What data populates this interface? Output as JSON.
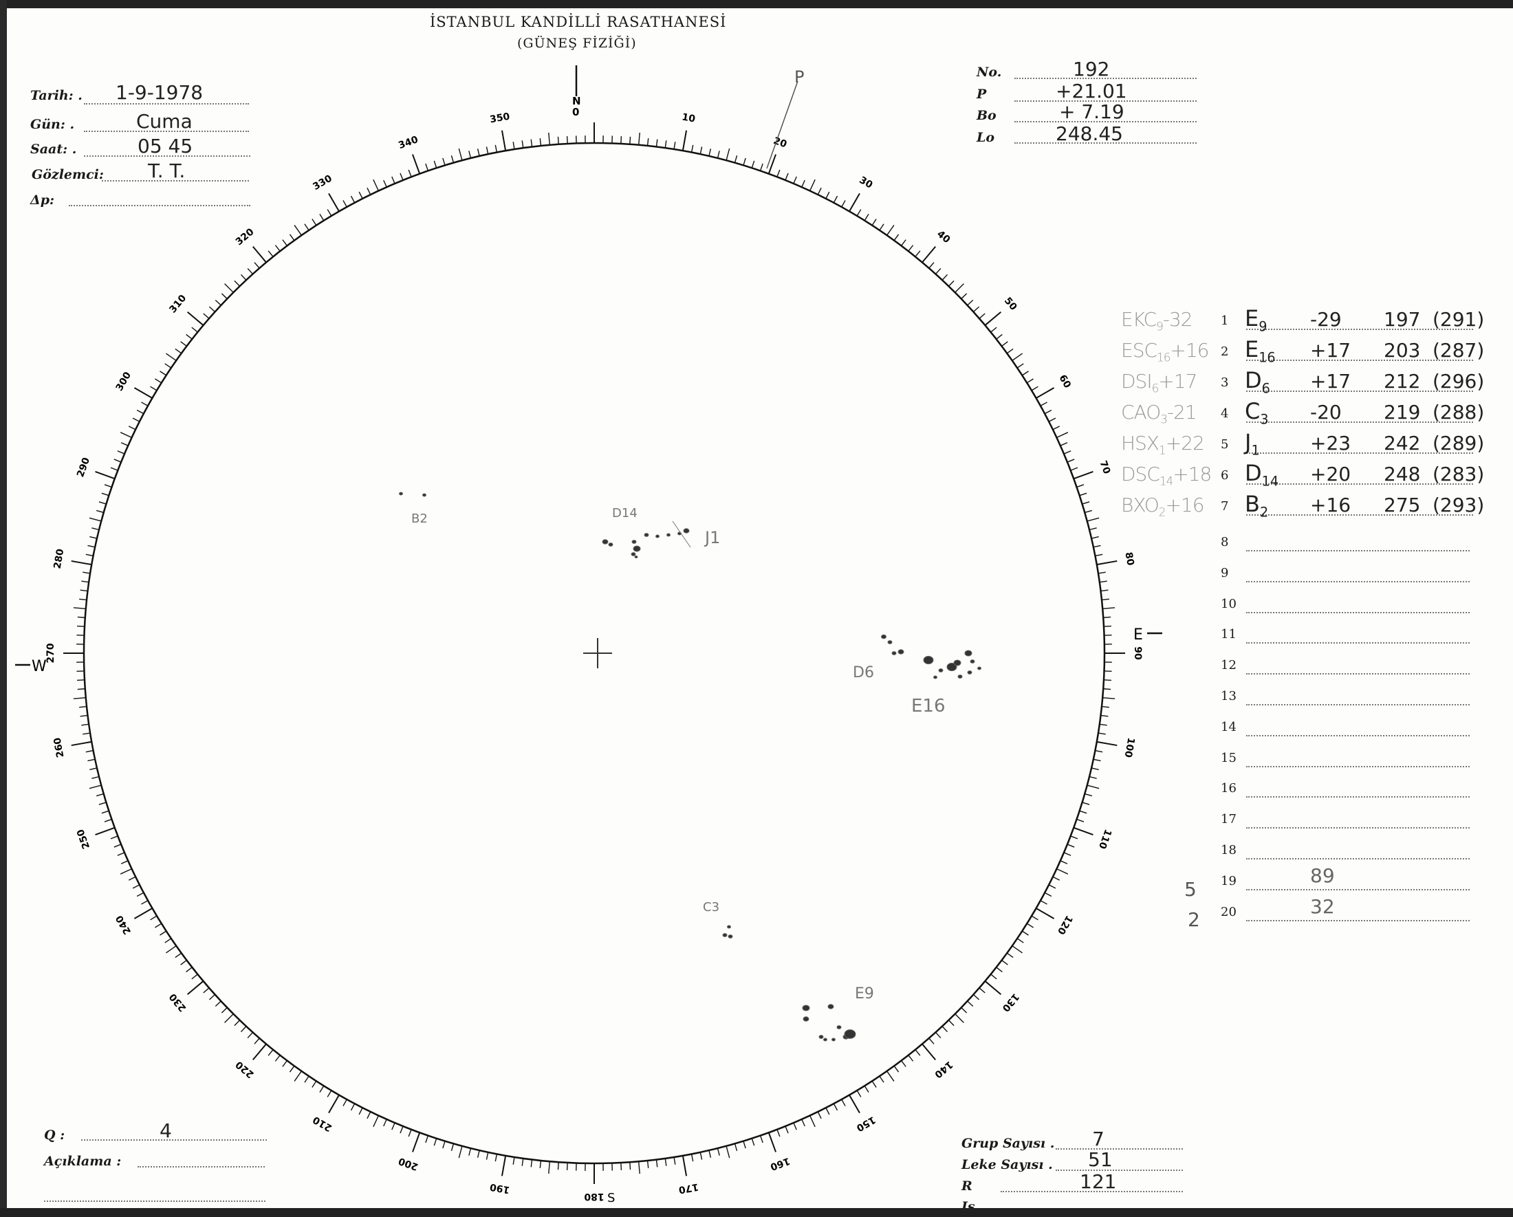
{
  "header": {
    "title": "İSTANBUL KANDİLLİ RASATHANESİ",
    "subtitle": "(GÜNEŞ FİZİĞİ)"
  },
  "fields_left": [
    {
      "label": "Tarih: .",
      "value": "1-9-1978"
    },
    {
      "label": "Gün: .",
      "value": "Cuma"
    },
    {
      "label": "Saat: .",
      "value": "05 45"
    },
    {
      "label": "Gözlemci:",
      "value": "T. T."
    },
    {
      "label": "Δp:",
      "value": ""
    }
  ],
  "fields_right": [
    {
      "label": "No.",
      "value": "192"
    },
    {
      "label": "P",
      "value": "+21.01"
    },
    {
      "label": "Bo",
      "value": "+ 7.19"
    },
    {
      "label": "Lo",
      "value": "248.45"
    }
  ],
  "disk": {
    "north": "N",
    "zero": "0",
    "east": "E",
    "west": "W",
    "south": "S",
    "pole_mark": "P",
    "scale_labels": [
      "0",
      "10",
      "20",
      "30",
      "40",
      "50",
      "60",
      "70",
      "80",
      "90",
      "100",
      "110",
      "120",
      "130",
      "140",
      "150",
      "160",
      "170",
      "180",
      "190",
      "200",
      "210",
      "220",
      "230",
      "240",
      "250",
      "260",
      "270",
      "280",
      "290",
      "300",
      "310",
      "320",
      "330",
      "340",
      "350"
    ],
    "group_labels": [
      "B2",
      "D14",
      "J1",
      "D6",
      "E16",
      "C3",
      "E9"
    ]
  },
  "groups_table": {
    "rows": [
      {
        "n": "1",
        "class": "EKC",
        "class_sub": "9",
        "class_lat": "-32",
        "group": "E",
        "group_sub": "9",
        "lat": "-29",
        "long": "197",
        "cmd": "(291)"
      },
      {
        "n": "2",
        "class": "ESC",
        "class_sub": "16",
        "class_lat": "+16",
        "group": "E",
        "group_sub": "16",
        "lat": "+17",
        "long": "203",
        "cmd": "(287)"
      },
      {
        "n": "3",
        "class": "DSI",
        "class_sub": "6",
        "class_lat": "+17",
        "group": "D",
        "group_sub": "6",
        "lat": "+17",
        "long": "212",
        "cmd": "(296)"
      },
      {
        "n": "4",
        "class": "CAO",
        "class_sub": "3",
        "class_lat": "-21",
        "group": "C",
        "group_sub": "3",
        "lat": "-20",
        "long": "219",
        "cmd": "(288)"
      },
      {
        "n": "5",
        "class": "HSX",
        "class_sub": "1",
        "class_lat": "+22",
        "group": "J",
        "group_sub": "1",
        "lat": "+23",
        "long": "242",
        "cmd": "(289)"
      },
      {
        "n": "6",
        "class": "DSC",
        "class_sub": "14",
        "class_lat": "+18",
        "group": "D",
        "group_sub": "14",
        "lat": "+20",
        "long": "248",
        "cmd": "(283)"
      },
      {
        "n": "7",
        "class": "BXO",
        "class_sub": "2",
        "class_lat": "+16",
        "group": "B",
        "group_sub": "2",
        "lat": "+16",
        "long": "275",
        "cmd": "(293)"
      },
      {
        "n": "8"
      },
      {
        "n": "9"
      },
      {
        "n": "10"
      },
      {
        "n": "11"
      },
      {
        "n": "12"
      },
      {
        "n": "13"
      },
      {
        "n": "14"
      },
      {
        "n": "15"
      },
      {
        "n": "16"
      },
      {
        "n": "17"
      },
      {
        "n": "18"
      },
      {
        "n": "19",
        "note": "89"
      },
      {
        "n": "20",
        "note": "32"
      }
    ],
    "side_note_top": "5",
    "side_note_bottom": "2"
  },
  "bottom_left": {
    "q_label": "Q :",
    "q_value": "4",
    "aciklama_label": "Açıklama :"
  },
  "bottom_right": [
    {
      "label": "Grup Sayısı .",
      "value": "7"
    },
    {
      "label": "Leke Sayısı .",
      "value": "51"
    },
    {
      "label": "R",
      "value": "121"
    },
    {
      "label": "Is",
      "value": ""
    }
  ]
}
